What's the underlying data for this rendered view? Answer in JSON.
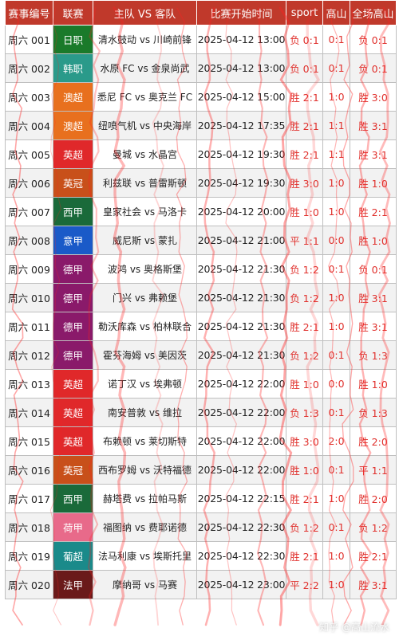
{
  "headers": [
    "赛事编号",
    "联赛",
    "主队 VS 客队",
    "比赛开始时间",
    "sport",
    "高山",
    "全场高山"
  ],
  "rows": [
    {
      "id": "周六 001",
      "league": "日职",
      "league_color": "#1a7a2a",
      "teams": "清水鼓动 vs 川崎前锋",
      "time": "2025-04-12 13:00",
      "sport": "负 0:1",
      "gaoshan": "0:1",
      "full": "负 0:1"
    },
    {
      "id": "周六 002",
      "league": "韩职",
      "league_color": "#2a9a8a",
      "teams": "水原 FC vs 金泉尚武",
      "time": "2025-04-12 13:00",
      "sport": "负 0:1",
      "gaoshan": "0:1",
      "full": "负 0:1"
    },
    {
      "id": "周六 003",
      "league": "澳超",
      "league_color": "#e8701e",
      "teams": "悉尼 FC vs 奥克兰 FC",
      "time": "2025-04-12 15:00",
      "sport": "胜 2:1",
      "gaoshan": "1:0",
      "full": "胜 3:0"
    },
    {
      "id": "周六 004",
      "league": "澳超",
      "league_color": "#e8701e",
      "teams": "纽喷气机 vs 中央海岸",
      "time": "2025-04-12 17:35",
      "sport": "胜 2:1",
      "gaoshan": "1:1",
      "full": "胜 3:1"
    },
    {
      "id": "周六 005",
      "league": "英超",
      "league_color": "#e0282a",
      "teams": "曼城 vs 水晶宫",
      "time": "2025-04-12 19:30",
      "sport": "胜 2:1",
      "gaoshan": "1:1",
      "full": "胜 3:1"
    },
    {
      "id": "周六 006",
      "league": "英冠",
      "league_color": "#c8501a",
      "teams": "利兹联 vs 普雷斯顿",
      "time": "2025-04-12 19:30",
      "sport": "胜 3:0",
      "gaoshan": "1:0",
      "full": "胜 1:0"
    },
    {
      "id": "周六 007",
      "league": "西甲",
      "league_color": "#1a6a3a",
      "teams": "皇家社会 vs 马洛卡",
      "time": "2025-04-12 20:00",
      "sport": "胜 1:0",
      "gaoshan": "1:0",
      "full": "胜 2:1"
    },
    {
      "id": "周六 008",
      "league": "意甲",
      "league_color": "#1a5ac8",
      "teams": "威尼斯 vs 蒙扎",
      "time": "2025-04-12 21:00",
      "sport": "平 1:1",
      "gaoshan": "0:0",
      "full": "胜 1:0"
    },
    {
      "id": "周六 009",
      "league": "德甲",
      "league_color": "#8a1a6a",
      "teams": "波鸿 vs 奥格斯堡",
      "time": "2025-04-12 21:30",
      "sport": "负 1:2",
      "gaoshan": "0:1",
      "full": "负 0:1"
    },
    {
      "id": "周六 010",
      "league": "德甲",
      "league_color": "#8a1a6a",
      "teams": "门兴 vs 弗赖堡",
      "time": "2025-04-12 21:30",
      "sport": "负 1:2",
      "gaoshan": "1:0",
      "full": "胜 3:1"
    },
    {
      "id": "周六 011",
      "league": "德甲",
      "league_color": "#8a1a6a",
      "teams": "勒沃库森 vs 柏林联合",
      "time": "2025-04-12 21:30",
      "sport": "胜 2:1",
      "gaoshan": "1:0",
      "full": "胜 3:1"
    },
    {
      "id": "周六 012",
      "league": "德甲",
      "league_color": "#8a1a6a",
      "teams": "霍芬海姆 vs 美因茨",
      "time": "2025-04-12 21:30",
      "sport": "负 1:2",
      "gaoshan": "0:1",
      "full": "负 1:3"
    },
    {
      "id": "周六 013",
      "league": "英超",
      "league_color": "#e0282a",
      "teams": "诺丁汉 vs 埃弗顿",
      "time": "2025-04-12 22:00",
      "sport": "胜 1:0",
      "gaoshan": "0:0",
      "full": "胜 1:0"
    },
    {
      "id": "周六 014",
      "league": "英超",
      "league_color": "#e0282a",
      "teams": "南安普敦 vs 维拉",
      "time": "2025-04-12 22:00",
      "sport": "负 1:3",
      "gaoshan": "0:1",
      "full": "负 1:3"
    },
    {
      "id": "周六 015",
      "league": "英超",
      "league_color": "#e0282a",
      "teams": "布赖顿 vs 莱切斯特",
      "time": "2025-04-12 22:00",
      "sport": "胜 3:0",
      "gaoshan": "2:0",
      "full": "胜 2:0"
    },
    {
      "id": "周六 016",
      "league": "英冠",
      "league_color": "#c8501a",
      "teams": "西布罗姆 vs 沃特福德",
      "time": "2025-04-12 22:00",
      "sport": "胜 1:0",
      "gaoshan": "0:1",
      "full": "平 1:1"
    },
    {
      "id": "周六 017",
      "league": "西甲",
      "league_color": "#1a6a3a",
      "teams": "赫塔费 vs 拉帕马斯",
      "time": "2025-04-12 22:15",
      "sport": "胜 2:1",
      "gaoshan": "1:0",
      "full": "胜 2:0"
    },
    {
      "id": "周六 018",
      "league": "荷甲",
      "league_color": "#e86a8a",
      "teams": "福图纳 vs 费耶诺德",
      "time": "2025-04-12 22:30",
      "sport": "负 1:2",
      "gaoshan": "0:1",
      "full": "负 1:2"
    },
    {
      "id": "周六 019",
      "league": "葡超",
      "league_color": "#1a8a8a",
      "teams": "法马利康 vs 埃斯托里",
      "time": "2025-04-12 22:30",
      "sport": "胜 2:1",
      "gaoshan": "1:0",
      "full": "胜 2:1"
    },
    {
      "id": "周六 020",
      "league": "法甲",
      "league_color": "#6a1a1a",
      "teams": "摩纳哥 vs 马赛",
      "time": "2025-04-12 23:00",
      "sport": "平 2:2",
      "gaoshan": "1:0",
      "full": "胜 3:1"
    }
  ],
  "watermark": "知乎 @高山流水",
  "colors": {
    "header_bg": "#c0392b",
    "header_text": "#ffffff",
    "result_text": "#e0302c",
    "scribble": "#ff2020"
  }
}
